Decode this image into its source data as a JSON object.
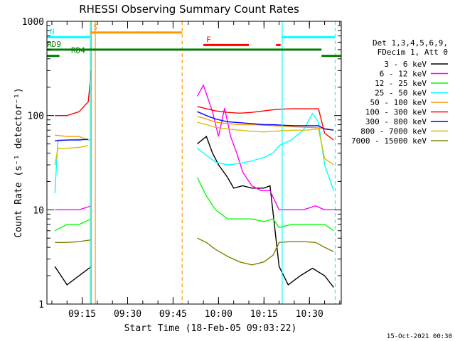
{
  "chart_data": {
    "type": "line",
    "title": "RHESSI Observing Summary Count Rates",
    "xlabel": "Start Time (18-Feb-05 09:03:22)",
    "ylabel": "Count Rate (s⁻¹ detector⁻¹)",
    "y_scale": "log",
    "xlim": [
      "09:03:22",
      "10:40:30"
    ],
    "ylim": [
      1,
      1000
    ],
    "x_ticks": [
      "09:15",
      "09:30",
      "09:45",
      "10:00",
      "10:15",
      "10:30"
    ],
    "y_ticks": [
      "1",
      "10",
      "100",
      "1000"
    ],
    "footer_timestamp": "15-Oct-2021 00:30",
    "legend_header": [
      "Det 1,3,4,5,6,9,",
      "FDecim 1, Att 0"
    ],
    "legend_placement": "right",
    "series": [
      {
        "name": "3 - 6 keV",
        "color": "#000000",
        "points": [
          [
            "09:06",
            2.5
          ],
          [
            "09:10",
            1.6
          ],
          [
            "09:14",
            2.0
          ],
          [
            "09:18",
            2.5
          ],
          [
            "09:53",
            50
          ],
          [
            "09:56",
            60
          ],
          [
            "09:58",
            40
          ],
          [
            "10:00",
            30
          ],
          [
            "10:03",
            22
          ],
          [
            "10:05",
            17
          ],
          [
            "10:08",
            18
          ],
          [
            "10:11",
            17
          ],
          [
            "10:15",
            17
          ],
          [
            "10:17",
            18
          ],
          [
            "10:20",
            2.5
          ],
          [
            "10:23",
            1.6
          ],
          [
            "10:27",
            2.0
          ],
          [
            "10:31",
            2.4
          ],
          [
            "10:35",
            2.0
          ],
          [
            "10:38",
            1.5
          ]
        ]
      },
      {
        "name": "6 - 12 keV",
        "color": "#ff00ff",
        "points": [
          [
            "09:06",
            10
          ],
          [
            "09:10",
            10
          ],
          [
            "09:14",
            10
          ],
          [
            "09:18",
            11
          ],
          [
            "09:53",
            160
          ],
          [
            "09:55",
            210
          ],
          [
            "09:56",
            170
          ],
          [
            "09:58",
            110
          ],
          [
            "10:00",
            60
          ],
          [
            "10:02",
            120
          ],
          [
            "10:04",
            60
          ],
          [
            "10:06",
            40
          ],
          [
            "10:08",
            25
          ],
          [
            "10:11",
            18
          ],
          [
            "10:14",
            16
          ],
          [
            "10:17",
            16
          ],
          [
            "10:20",
            10
          ],
          [
            "10:24",
            10
          ],
          [
            "10:28",
            10
          ],
          [
            "10:32",
            11
          ],
          [
            "10:35",
            10
          ],
          [
            "10:38",
            10
          ]
        ]
      },
      {
        "name": "12 - 25 keV",
        "color": "#00ff00",
        "points": [
          [
            "09:06",
            6
          ],
          [
            "09:10",
            7
          ],
          [
            "09:14",
            7
          ],
          [
            "09:18",
            8
          ],
          [
            "09:53",
            22
          ],
          [
            "09:56",
            14
          ],
          [
            "09:59",
            10
          ],
          [
            "10:03",
            8
          ],
          [
            "10:07",
            8
          ],
          [
            "10:11",
            8
          ],
          [
            "10:15",
            7.5
          ],
          [
            "10:18",
            8
          ],
          [
            "10:20",
            6.5
          ],
          [
            "10:24",
            7
          ],
          [
            "10:28",
            7
          ],
          [
            "10:32",
            7
          ],
          [
            "10:35",
            7
          ],
          [
            "10:38",
            6
          ]
        ]
      },
      {
        "name": "25 - 50 keV",
        "color": "#00ffff",
        "points": [
          [
            "09:06",
            15
          ],
          [
            "09:07",
            55
          ],
          [
            "09:10",
            55
          ],
          [
            "09:14",
            56
          ],
          [
            "09:18",
            55
          ],
          [
            "09:53",
            45
          ],
          [
            "09:56",
            38
          ],
          [
            "09:59",
            32
          ],
          [
            "10:03",
            30
          ],
          [
            "10:07",
            31
          ],
          [
            "10:11",
            33
          ],
          [
            "10:15",
            36
          ],
          [
            "10:18",
            40
          ],
          [
            "10:20",
            48
          ],
          [
            "10:24",
            55
          ],
          [
            "10:28",
            70
          ],
          [
            "10:31",
            105
          ],
          [
            "10:33",
            85
          ],
          [
            "10:35",
            30
          ],
          [
            "10:38",
            16
          ]
        ]
      },
      {
        "name": "50 - 100 keV",
        "color": "#ff9900",
        "points": [
          [
            "09:06",
            62
          ],
          [
            "09:10",
            60
          ],
          [
            "09:14",
            60
          ],
          [
            "09:17",
            55
          ],
          [
            "09:53",
            98
          ],
          [
            "09:56",
            92
          ],
          [
            "09:59",
            85
          ],
          [
            "10:03",
            82
          ],
          [
            "10:07",
            80
          ],
          [
            "10:11",
            80
          ],
          [
            "10:15",
            79
          ],
          [
            "10:18",
            78
          ],
          [
            "10:21",
            77
          ],
          [
            "10:25",
            76
          ],
          [
            "10:29",
            75
          ],
          [
            "10:33",
            74
          ],
          [
            "10:36",
            72
          ],
          [
            "10:38",
            70
          ]
        ]
      },
      {
        "name": "100 - 300 keV",
        "color": "#ff0000",
        "points": [
          [
            "09:06",
            100
          ],
          [
            "09:10",
            100
          ],
          [
            "09:14",
            110
          ],
          [
            "09:17",
            140
          ],
          [
            "09:18",
            300
          ],
          [
            "09:53",
            125
          ],
          [
            "09:56",
            118
          ],
          [
            "09:59",
            112
          ],
          [
            "10:03",
            108
          ],
          [
            "10:07",
            106
          ],
          [
            "10:11",
            108
          ],
          [
            "10:15",
            112
          ],
          [
            "10:18",
            115
          ],
          [
            "10:21",
            117
          ],
          [
            "10:25",
            118
          ],
          [
            "10:29",
            118
          ],
          [
            "10:33",
            118
          ],
          [
            "10:35",
            65
          ],
          [
            "10:38",
            55
          ]
        ]
      },
      {
        "name": "300 - 800 keV",
        "color": "#0000ff",
        "points": [
          [
            "09:06",
            54
          ],
          [
            "09:10",
            55
          ],
          [
            "09:14",
            55
          ],
          [
            "09:17",
            56
          ],
          [
            "09:53",
            110
          ],
          [
            "09:56",
            100
          ],
          [
            "09:59",
            92
          ],
          [
            "10:03",
            86
          ],
          [
            "10:07",
            84
          ],
          [
            "10:11",
            82
          ],
          [
            "10:15",
            80
          ],
          [
            "10:18",
            80
          ],
          [
            "10:21",
            79
          ],
          [
            "10:25",
            78
          ],
          [
            "10:29",
            78
          ],
          [
            "10:33",
            78
          ],
          [
            "10:35",
            72
          ],
          [
            "10:38",
            70
          ]
        ]
      },
      {
        "name": "800 - 7000 keV",
        "color": "#ddbb00",
        "points": [
          [
            "09:06",
            30
          ],
          [
            "09:07",
            45
          ],
          [
            "09:10",
            45
          ],
          [
            "09:14",
            46
          ],
          [
            "09:17",
            48
          ],
          [
            "09:53",
            85
          ],
          [
            "09:56",
            80
          ],
          [
            "09:59",
            75
          ],
          [
            "10:03",
            72
          ],
          [
            "10:07",
            70
          ],
          [
            "10:11",
            68
          ],
          [
            "10:15",
            67
          ],
          [
            "10:18",
            68
          ],
          [
            "10:21",
            69
          ],
          [
            "10:25",
            70
          ],
          [
            "10:29",
            70
          ],
          [
            "10:33",
            72
          ],
          [
            "10:35",
            35
          ],
          [
            "10:38",
            30
          ]
        ]
      },
      {
        "name": "7000 - 15000 keV",
        "color": "#808000",
        "points": [
          [
            "09:06",
            4.5
          ],
          [
            "09:10",
            4.5
          ],
          [
            "09:14",
            4.6
          ],
          [
            "09:18",
            4.8
          ],
          [
            "09:53",
            5.0
          ],
          [
            "09:56",
            4.5
          ],
          [
            "09:59",
            3.8
          ],
          [
            "10:03",
            3.2
          ],
          [
            "10:07",
            2.8
          ],
          [
            "10:11",
            2.6
          ],
          [
            "10:15",
            2.8
          ],
          [
            "10:18",
            3.3
          ],
          [
            "10:20",
            4.5
          ],
          [
            "10:24",
            4.6
          ],
          [
            "10:28",
            4.6
          ],
          [
            "10:32",
            4.5
          ],
          [
            "10:35",
            4.0
          ],
          [
            "10:38",
            3.6
          ]
        ]
      }
    ],
    "state_bars": [
      {
        "label": "RD9",
        "color": "#008000",
        "y": 500,
        "segments": [
          [
            "09:03:22",
            "10:34:00"
          ]
        ]
      },
      {
        "label": "RD4",
        "color": "#008000",
        "y": 430,
        "segments": [
          [
            "09:03:22",
            "09:07:30"
          ],
          [
            "10:34:00",
            "10:40:30"
          ]
        ]
      },
      {
        "label": "S",
        "color": "#ff9900",
        "y": 760,
        "segments": [
          [
            "09:17:40",
            "09:48:00"
          ]
        ]
      },
      {
        "label": "N",
        "color": "#00ffff",
        "y": 680,
        "segments": [
          [
            "09:03:22",
            "09:17:40"
          ],
          [
            "10:21:00",
            "10:38:30"
          ]
        ]
      },
      {
        "label": "F",
        "color": "#ff0000",
        "y": 560,
        "segments": [
          [
            "09:55:00",
            "10:10:00"
          ],
          [
            "10:19:00",
            "10:20:30"
          ]
        ]
      }
    ],
    "markers": [
      {
        "time": "09:18:00",
        "color": "#ff9900",
        "style": "solid"
      },
      {
        "time": "09:19:20",
        "color": "#ff9900",
        "style": "solid"
      },
      {
        "time": "09:48:00",
        "color": "#ff9900",
        "style": "dashed"
      },
      {
        "time": "09:17:40",
        "color": "#00ffff",
        "style": "solid"
      },
      {
        "time": "10:21:00",
        "color": "#00ffff",
        "style": "solid"
      },
      {
        "time": "10:38:30",
        "color": "#00ffff",
        "style": "dashed"
      }
    ]
  }
}
